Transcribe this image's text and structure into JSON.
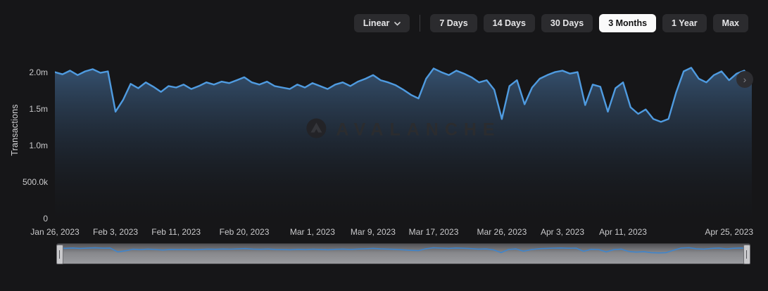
{
  "controls": {
    "scale_selector": {
      "label": "Linear"
    },
    "ranges": [
      {
        "label": "7 Days",
        "active": false
      },
      {
        "label": "14 Days",
        "active": false
      },
      {
        "label": "30 Days",
        "active": false
      },
      {
        "label": "3 Months",
        "active": true
      },
      {
        "label": "1 Year",
        "active": false
      },
      {
        "label": "Max",
        "active": false
      }
    ]
  },
  "icons": {
    "scroll_right": "›"
  },
  "chart_data": {
    "type": "area",
    "title": "",
    "ylabel": "Transactions",
    "watermark": "AVALANCHE",
    "x_start": "Jan 26, 2023",
    "x_end": "Apr 28, 2023",
    "x_span_days": 92,
    "cadence": "daily",
    "grid": "off",
    "legend": "off",
    "line_color": "#4f9be0",
    "area_top_color": "#3d5f84",
    "area_bottom_color": "#181b20",
    "ylim_millions": [
      0,
      2.14
    ],
    "y_ticks": [
      {
        "label": "2.0m",
        "value": 2.0
      },
      {
        "label": "1.5m",
        "value": 1.5
      },
      {
        "label": "1.0m",
        "value": 1.0
      },
      {
        "label": "500.0k",
        "value": 0.5
      },
      {
        "label": "0",
        "value": 0
      }
    ],
    "x_ticks": [
      {
        "label": "Jan 26, 2023",
        "day": 0
      },
      {
        "label": "Feb 3, 2023",
        "day": 8
      },
      {
        "label": "Feb 11, 2023",
        "day": 16
      },
      {
        "label": "Feb 20, 2023",
        "day": 25
      },
      {
        "label": "Mar 1, 2023",
        "day": 34
      },
      {
        "label": "Mar 9, 2023",
        "day": 42
      },
      {
        "label": "Mar 17, 2023",
        "day": 50
      },
      {
        "label": "Mar 26, 2023",
        "day": 59
      },
      {
        "label": "Apr 3, 2023",
        "day": 67
      },
      {
        "label": "Apr 11, 2023",
        "day": 75
      },
      {
        "label": "Apr 25, 2023",
        "day": 89
      }
    ],
    "series": [
      {
        "name": "Transactions",
        "unit": "millions",
        "values": [
          2.0,
          1.97,
          2.02,
          1.96,
          2.01,
          2.04,
          1.99,
          2.01,
          1.46,
          1.62,
          1.84,
          1.78,
          1.86,
          1.8,
          1.73,
          1.81,
          1.79,
          1.83,
          1.77,
          1.81,
          1.86,
          1.83,
          1.87,
          1.85,
          1.89,
          1.93,
          1.86,
          1.83,
          1.87,
          1.81,
          1.79,
          1.77,
          1.83,
          1.79,
          1.85,
          1.81,
          1.77,
          1.83,
          1.86,
          1.81,
          1.87,
          1.91,
          1.96,
          1.89,
          1.86,
          1.82,
          1.76,
          1.69,
          1.64,
          1.91,
          2.05,
          2.0,
          1.96,
          2.02,
          1.98,
          1.93,
          1.86,
          1.89,
          1.76,
          1.36,
          1.81,
          1.89,
          1.56,
          1.79,
          1.91,
          1.96,
          2.0,
          2.02,
          1.98,
          2.0,
          1.55,
          1.83,
          1.8,
          1.46,
          1.78,
          1.86,
          1.52,
          1.43,
          1.49,
          1.36,
          1.32,
          1.36,
          1.72,
          2.01,
          2.06,
          1.91,
          1.86,
          1.96,
          2.01,
          1.89,
          1.98,
          2.02,
          1.88
        ]
      }
    ]
  },
  "navigator": {
    "line_color": "#3f85cc"
  }
}
